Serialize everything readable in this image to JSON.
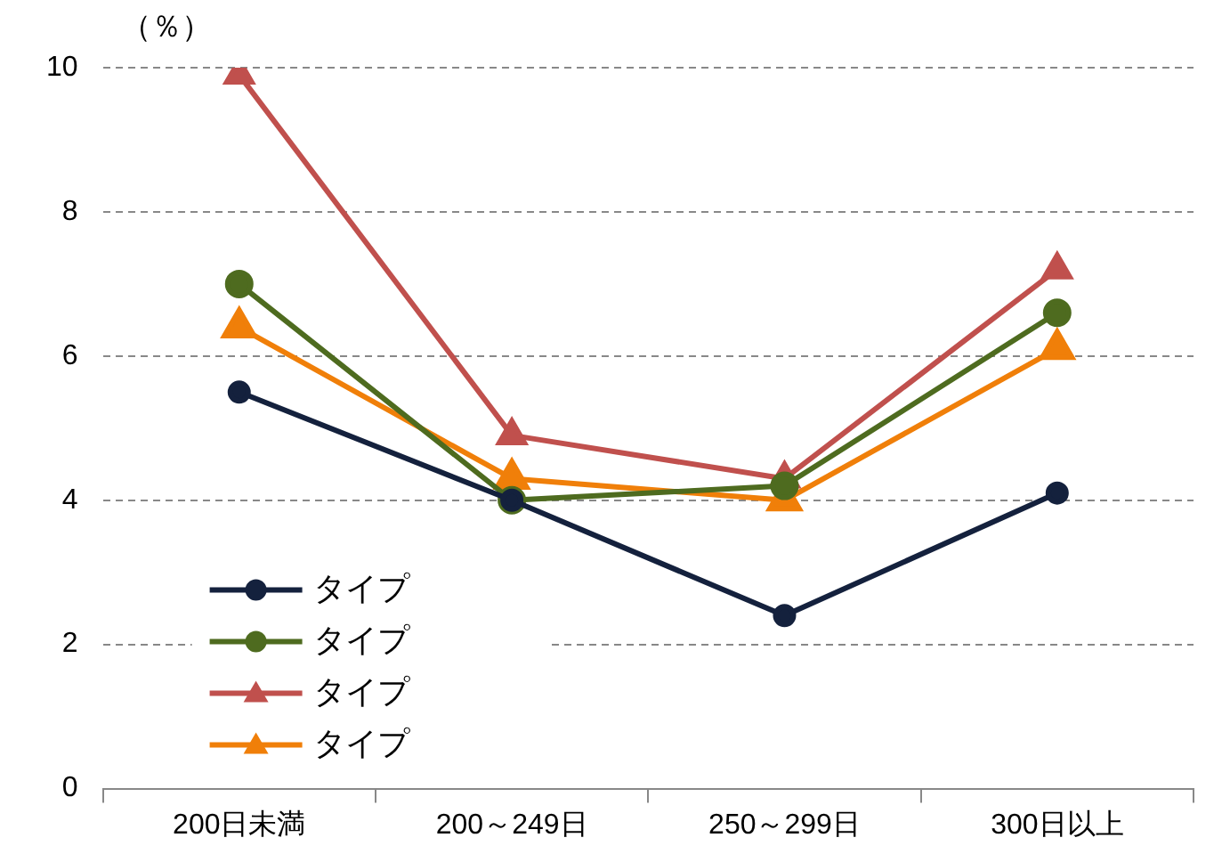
{
  "chart_data": {
    "type": "line",
    "ylabel": "（％）",
    "categories": [
      "200日未満",
      "200～249日",
      "250～299日",
      "300日以上"
    ],
    "series": [
      {
        "name": "タイプ",
        "color": "#14213d",
        "marker": "circle",
        "values": [
          5.5,
          4.0,
          2.4,
          4.1
        ]
      },
      {
        "name": "タイプ",
        "color": "#4e6b1f",
        "marker": "circle",
        "values": [
          7.0,
          4.0,
          4.2,
          6.6
        ]
      },
      {
        "name": "タイプ",
        "color": "#c0504d",
        "marker": "triangle",
        "values": [
          9.9,
          4.9,
          4.3,
          7.2
        ]
      },
      {
        "name": "タイプ",
        "color": "#f07f09",
        "marker": "triangle",
        "values": [
          6.4,
          4.3,
          4.0,
          6.1
        ]
      }
    ],
    "ylim": [
      0,
      10
    ],
    "yticks": [
      0,
      2,
      4,
      6,
      8,
      10
    ],
    "grid": "y",
    "legend": "bottom left",
    "line_style": "solid"
  }
}
